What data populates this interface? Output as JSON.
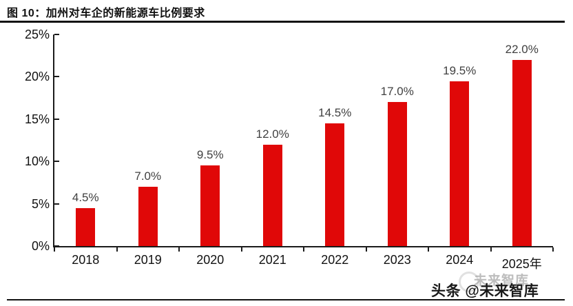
{
  "figure": {
    "title": "图  10：加州对车企的新能源车比例要求"
  },
  "chart_data": {
    "type": "bar",
    "title": "加州对车企的新能源车比例要求",
    "categories": [
      "2018",
      "2019",
      "2020",
      "2021",
      "2022",
      "2023",
      "2024",
      "2025年"
    ],
    "values": [
      4.5,
      7.0,
      9.5,
      12.0,
      14.5,
      17.0,
      19.5,
      22.0
    ],
    "data_labels": [
      "4.5%",
      "7.0%",
      "9.5%",
      "12.0%",
      "14.5%",
      "17.0%",
      "19.5%",
      "22.0%"
    ],
    "y_tick_labels": [
      "0%",
      "5%",
      "10%",
      "15%",
      "20%",
      "25%"
    ],
    "y_tick_values": [
      0,
      5,
      10,
      15,
      20,
      25
    ],
    "ylim": [
      0,
      25
    ],
    "xlabel": "",
    "ylabel": "",
    "grid": false,
    "legend": false,
    "bar_color": "#e00808",
    "value_label_color": "#404040",
    "axis_color": "#1a1a1a"
  },
  "watermark": {
    "text": "头条 @未来智库",
    "ghost_text": "未来智库"
  }
}
